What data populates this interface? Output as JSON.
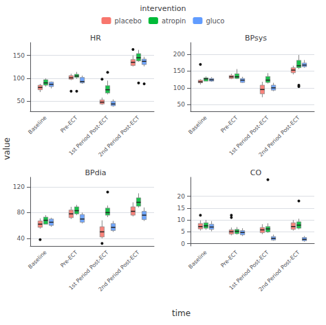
{
  "xlabel": "time",
  "ylabel": "value",
  "legend_title": "intervention",
  "legend": "top",
  "chart_data": [
    {
      "type": "boxplot",
      "title": "HR",
      "categories": [
        "Baseline",
        "Pre-ECT",
        "1st Period Post-ECT",
        "2nd Period Post-ECT"
      ],
      "ylim": [
        28,
        178
      ],
      "yticks": [
        50,
        100,
        150
      ],
      "grid": true,
      "series": [
        {
          "name": "placebo",
          "color": "#F8766D",
          "values": [
            [
              70,
              75,
              80,
              85,
              88
            ],
            [
              96,
              98,
              101,
              106,
              110
            ],
            [
              42,
              44,
              48,
              53,
              58
            ],
            [
              126,
              128,
              135,
              141,
              150
            ]
          ],
          "outliers": [
            [],
            [
              72
            ],
            [
              98
            ],
            [
              163
            ]
          ]
        },
        {
          "name": "atropin",
          "color": "#00BA38",
          "values": [
            [
              82,
              85,
              90,
              97,
              100
            ],
            [
              99,
              102,
              105,
              109,
              114
            ],
            [
              65,
              68,
              75,
              84,
              95
            ],
            [
              136,
              138,
              145,
              154,
              162
            ]
          ],
          "outliers": [
            [],
            [
              72
            ],
            [
              113
            ],
            [
              90
            ]
          ]
        },
        {
          "name": "gluco",
          "color": "#619CFF",
          "values": [
            [
              78,
              82,
              87,
              92,
              93
            ],
            [
              88,
              90,
              93,
              102,
              106
            ],
            [
              38,
              40,
              44,
              50,
              54
            ],
            [
              126,
              130,
              137,
              142,
              147
            ]
          ],
          "outliers": [
            [],
            [],
            [],
            [
              88
            ]
          ]
        }
      ]
    },
    {
      "type": "boxplot",
      "title": "BPsys",
      "categories": [
        "Baseline",
        "Pre-ECT",
        "1st Period Post-ECT",
        "2nd Period Post-ECT"
      ],
      "ylim": [
        30,
        235
      ],
      "yticks": [
        50,
        100,
        150,
        200
      ],
      "grid": true,
      "series": [
        {
          "name": "placebo",
          "color": "#F8766D",
          "values": [
            [
              110,
              115,
              118,
              123,
              126
            ],
            [
              126,
              128,
              133,
              137,
              142
            ],
            [
              72,
              82,
              95,
              108,
              118
            ],
            [
              140,
              145,
              153,
              160,
              166
            ]
          ],
          "outliers": [
            [
              170
            ],
            [],
            [],
            []
          ]
        },
        {
          "name": "atropin",
          "color": "#00BA38",
          "values": [
            [
              120,
              120,
              127,
              130,
              134
            ],
            [
              126,
              128,
              133,
              142,
              156
            ],
            [
              113,
              116,
              123,
              134,
              144
            ],
            [
              156,
              160,
              166,
              182,
              198
            ]
          ],
          "outliers": [
            [],
            [],
            [],
            [
              108,
              104
            ]
          ]
        },
        {
          "name": "gluco",
          "color": "#619CFF",
          "values": [
            [
              118,
              120,
              124,
              128,
              132
            ],
            [
              115,
              116,
              123,
              128,
              133
            ],
            [
              90,
              93,
              100,
              108,
              115
            ],
            [
              160,
              163,
              168,
              174,
              183
            ]
          ],
          "outliers": [
            [],
            [],
            [],
            []
          ]
        }
      ]
    },
    {
      "type": "boxplot",
      "title": "BPdia",
      "categories": [
        "Baseline",
        "Pre-ECT",
        "1st Period Post-ECT",
        "2nd Period Post-ECT"
      ],
      "ylim": [
        28,
        135
      ],
      "yticks": [
        40,
        80,
        120
      ],
      "grid": true,
      "series": [
        {
          "name": "placebo",
          "color": "#F8766D",
          "values": [
            [
              55,
              57,
              62,
              67,
              71
            ],
            [
              70,
              72,
              78,
              84,
              89
            ],
            [
              40,
              42,
              50,
              58,
              68
            ],
            [
              74,
              76,
              82,
              89,
              96
            ]
          ],
          "outliers": [
            [
              38
            ],
            [],
            [
              32
            ],
            []
          ]
        },
        {
          "name": "atropin",
          "color": "#00BA38",
          "values": [
            [
              62,
              62,
              68,
              73,
              76
            ],
            [
              76,
              78,
              83,
              89,
              92
            ],
            [
              73,
              76,
              80,
              87,
              91
            ],
            [
              88,
              90,
              96,
              103,
              110
            ]
          ],
          "outliers": [
            [],
            [],
            [
              112
            ],
            []
          ]
        },
        {
          "name": "gluco",
          "color": "#619CFF",
          "values": [
            [
              58,
              60,
              65,
              70,
              72
            ],
            [
              63,
              65,
              70,
              77,
              80
            ],
            [
              50,
              52,
              57,
              63,
              67
            ],
            [
              67,
              69,
              76,
              82,
              88
            ]
          ],
          "outliers": [
            [],
            [],
            [],
            []
          ]
        }
      ]
    },
    {
      "type": "boxplot",
      "title": "CO",
      "categories": [
        "Baseline",
        "Pre-ECT",
        "1st Period Post-ECT",
        "2nd Period Post-ECT"
      ],
      "ylim": [
        -1,
        28
      ],
      "yticks": [
        0,
        5,
        10,
        15,
        20
      ],
      "grid": true,
      "series": [
        {
          "name": "placebo",
          "color": "#F8766D",
          "values": [
            [
              5.5,
              6.2,
              7.2,
              8.5,
              9.8
            ],
            [
              3.5,
              4.0,
              5.0,
              5.8,
              6.8
            ],
            [
              4.0,
              4.6,
              5.8,
              6.8,
              8.2
            ],
            [
              5.5,
              6.0,
              7.2,
              8.8,
              10
            ]
          ],
          "outliers": [
            [
              12
            ],
            [
              11,
              12
            ],
            [],
            []
          ]
        },
        {
          "name": "atropin",
          "color": "#00BA38",
          "values": [
            [
              5.8,
              6.5,
              7.5,
              8.8,
              10
            ],
            [
              3.8,
              4.2,
              5.2,
              6.0,
              7.0
            ],
            [
              4.5,
              4.9,
              6.2,
              7.2,
              8.6
            ],
            [
              6.0,
              6.5,
              7.8,
              9.2,
              10.5
            ]
          ],
          "outliers": [
            [],
            [],
            [
              27
            ],
            [
              18
            ]
          ]
        },
        {
          "name": "gluco",
          "color": "#619CFF",
          "values": [
            [
              5.2,
              6.0,
              7.0,
              8.2,
              9.5
            ],
            [
              3.2,
              3.7,
              4.7,
              5.5,
              6.5
            ],
            [
              1.2,
              1.5,
              2.2,
              3.0,
              3.8
            ],
            [
              0.8,
              1.2,
              1.8,
              2.6,
              3.2
            ]
          ],
          "outliers": [
            [],
            [],
            [],
            []
          ]
        }
      ]
    }
  ]
}
